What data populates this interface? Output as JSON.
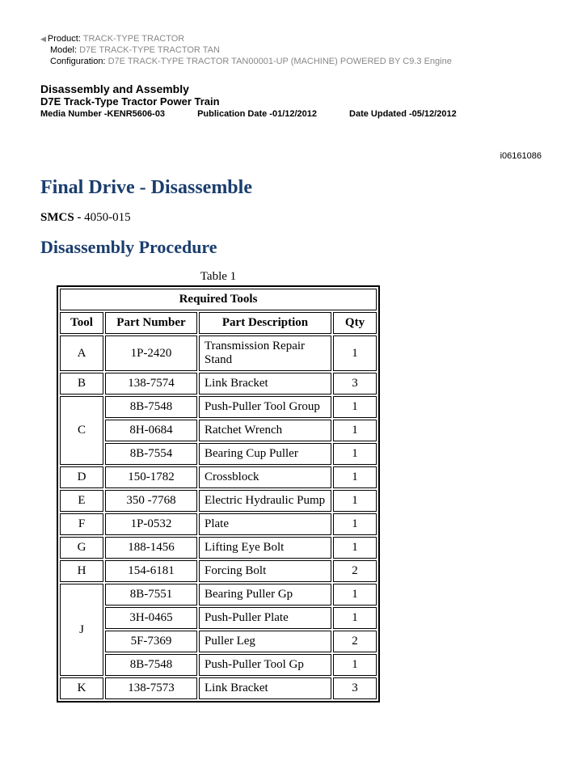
{
  "meta": {
    "product_label": "Product:",
    "product_value": "TRACK-TYPE TRACTOR",
    "model_label": "Model:",
    "model_value": "D7E TRACK-TYPE TRACTOR TAN",
    "config_label": "Configuration:",
    "config_value": "D7E TRACK-TYPE TRACTOR TAN00001-UP (MACHINE) POWERED BY C9.3 Engine"
  },
  "header": {
    "section_title": "Disassembly and Assembly",
    "section_sub": "D7E Track-Type Tractor Power Train",
    "media_number": "Media Number -KENR5606-03",
    "pub_date": "Publication Date -01/12/2012",
    "date_updated": "Date Updated -05/12/2012",
    "doc_id": "i06161086"
  },
  "content": {
    "h1": "Final Drive - Disassemble",
    "smcs_label": "SMCS - ",
    "smcs_value": "4050-015",
    "h2": "Disassembly Procedure"
  },
  "table": {
    "caption": "Table 1",
    "title": "Required Tools",
    "headers": {
      "tool": "Tool",
      "part": "Part Number",
      "desc": "Part Description",
      "qty": "Qty"
    },
    "rows": [
      {
        "tool": "A",
        "part": "1P-2420",
        "desc": "Transmission Repair Stand",
        "qty": "1"
      },
      {
        "tool": "B",
        "part": "138-7574",
        "desc": "Link Bracket",
        "qty": "3"
      },
      {
        "tool": "C",
        "span": 3,
        "parts": [
          {
            "part": "8B-7548",
            "desc": "Push-Puller Tool Group",
            "qty": "1"
          },
          {
            "part": "8H-0684",
            "desc": "Ratchet Wrench",
            "qty": "1"
          },
          {
            "part": "8B-7554",
            "desc": "Bearing Cup Puller",
            "qty": "1"
          }
        ]
      },
      {
        "tool": "D",
        "part": "150-1782",
        "desc": "Crossblock",
        "qty": "1"
      },
      {
        "tool": "E",
        "part": "350 -7768",
        "desc": "Electric Hydraulic Pump",
        "qty": "1"
      },
      {
        "tool": "F",
        "part": "1P-0532",
        "desc": "Plate",
        "qty": "1"
      },
      {
        "tool": "G",
        "part": "188-1456",
        "desc": "Lifting Eye Bolt",
        "qty": "1"
      },
      {
        "tool": "H",
        "part": "154-6181",
        "desc": "Forcing Bolt",
        "qty": "2"
      },
      {
        "tool": "J",
        "span": 4,
        "parts": [
          {
            "part": "8B-7551",
            "desc": "Bearing Puller Gp",
            "qty": "1"
          },
          {
            "part": "3H-0465",
            "desc": "Push-Puller Plate",
            "qty": "1"
          },
          {
            "part": "5F-7369",
            "desc": "Puller Leg",
            "qty": "2"
          },
          {
            "part": "8B-7548",
            "desc": "Push-Puller Tool Gp",
            "qty": "1"
          }
        ]
      },
      {
        "tool": "K",
        "part": "138-7573",
        "desc": "Link Bracket",
        "qty": "3"
      }
    ]
  }
}
